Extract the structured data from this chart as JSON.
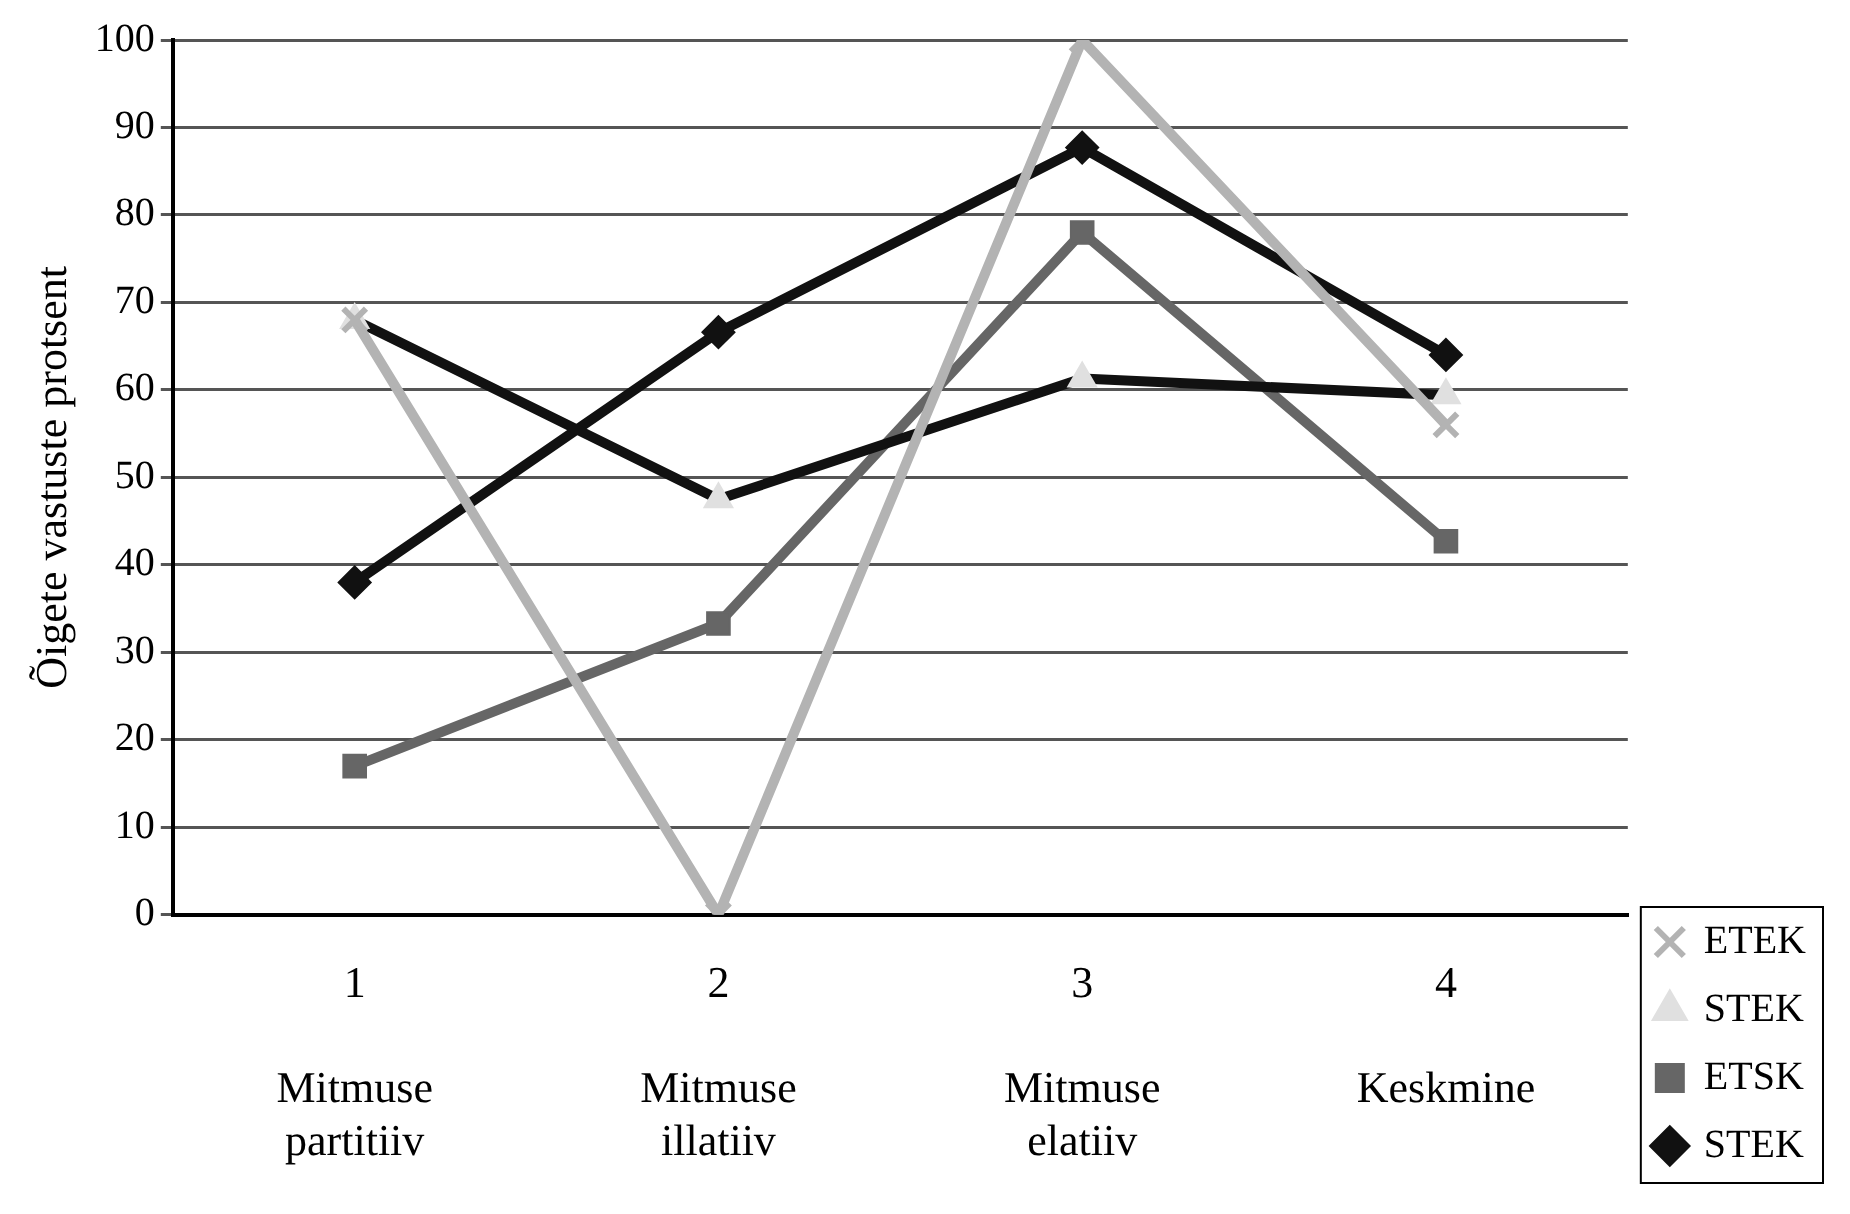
{
  "chart_data": {
    "type": "line",
    "ylabel": "Õigete vastuste protsent",
    "categories": [
      "1\n\nMitmuse\npartitiiv",
      "2\n\nMitmuse\nillatiiv",
      "3\n\nMitmuse\nelatiiv",
      "4\n\nKeskmine"
    ],
    "series": [
      {
        "name": "STEK",
        "color": "#111111",
        "marker": "diamond",
        "values": [
          38,
          66.6,
          87.7,
          64
        ]
      },
      {
        "name": "ETSK",
        "color": "#666666",
        "marker": "square",
        "values": [
          17,
          33.3,
          78,
          42.7
        ]
      },
      {
        "name": "STEK",
        "color": "#111111",
        "colors": [
          "#e0e0e0",
          "#e0e0e0",
          "#e0e0e0",
          "#e0e0e0"
        ],
        "marker": "triangle",
        "values": [
          68,
          47.5,
          61.3,
          59.4
        ]
      },
      {
        "name": "ETEK",
        "color": "#b3b3b3",
        "marker": "cross",
        "values": [
          68,
          0,
          100,
          56
        ]
      }
    ],
    "ylim": [
      0,
      100
    ],
    "yticks": [
      0,
      10,
      20,
      30,
      40,
      50,
      60,
      70,
      80,
      90,
      100
    ],
    "grid": "y",
    "legend": "bottom right"
  }
}
